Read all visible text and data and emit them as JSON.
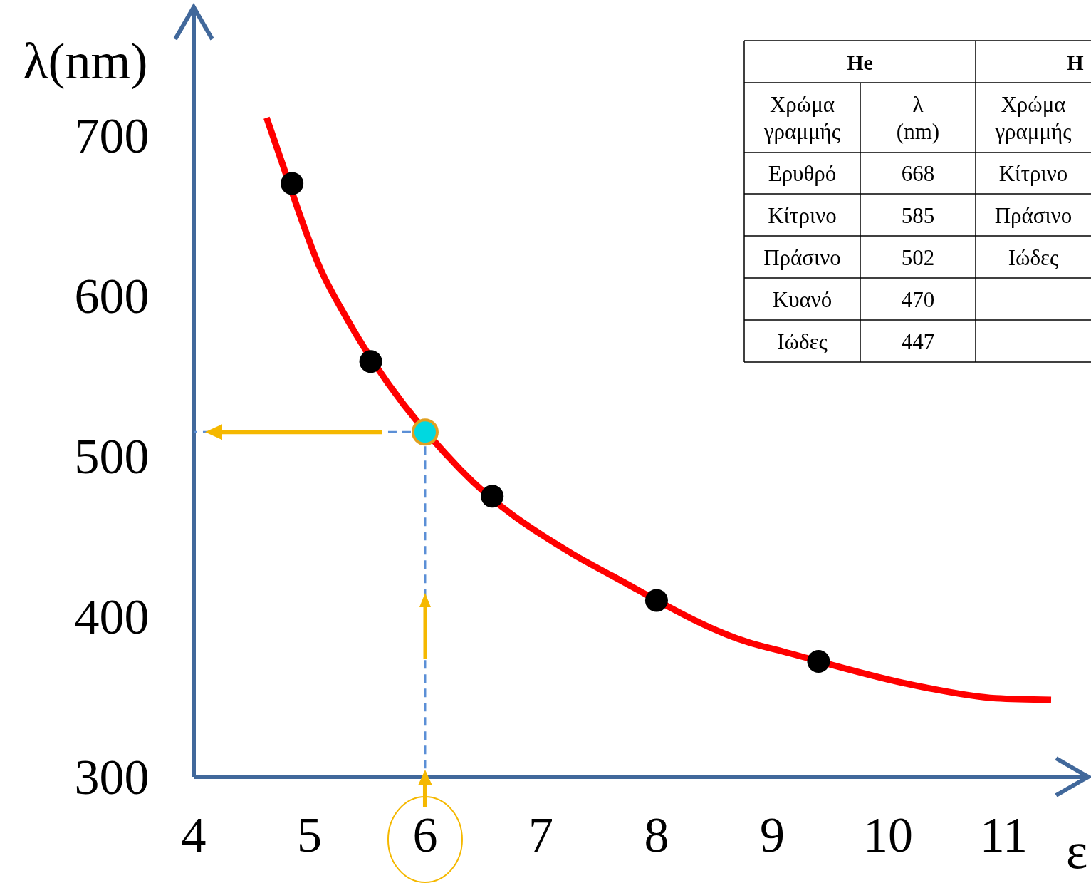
{
  "chart_data": {
    "type": "scatter",
    "xlabel": "ε",
    "ylabel": "λ(nm)",
    "xlim": [
      4,
      11.73
    ],
    "xticks": [
      4,
      5,
      6,
      7,
      8,
      9,
      10,
      11
    ],
    "ylim": [
      300,
      780
    ],
    "yticks": [
      300,
      400,
      500,
      600,
      700
    ],
    "grid": false,
    "series": [
      {
        "type": "line",
        "color": "#ff0000",
        "x": [
          4.63,
          4.73,
          5.1,
          5.33,
          6.3,
          7.25,
          7.6,
          8.79,
          9.1,
          10.3,
          10.93,
          11.41
        ],
        "values": [
          711,
          690,
          616,
          585,
          492,
          440,
          426,
          384,
          378,
          356,
          349,
          348
        ]
      },
      {
        "type": "scatter",
        "color": "#000000",
        "marker": "circle",
        "x": [
          4.85,
          5.53,
          6.58,
          8.0,
          9.4
        ],
        "values": [
          670,
          559,
          475,
          410,
          372
        ]
      },
      {
        "type": "scatter",
        "color": "#00d8e0",
        "marker": "circle",
        "x": [
          6.0
        ],
        "values": [
          515
        ]
      }
    ],
    "annotations": [
      "He",
      "H",
      "Χρώμα γραμμής",
      "λ (nm)",
      "Χρώμα γραμμής",
      "Ερυθρό",
      "668",
      "Κίτρινο",
      "Κίτρινο",
      "585",
      "Πράσινο",
      "Πράσινο",
      "502",
      "Ιώδες",
      "Κυανό",
      "470",
      "Ιώδες",
      "447"
    ]
  }
}
